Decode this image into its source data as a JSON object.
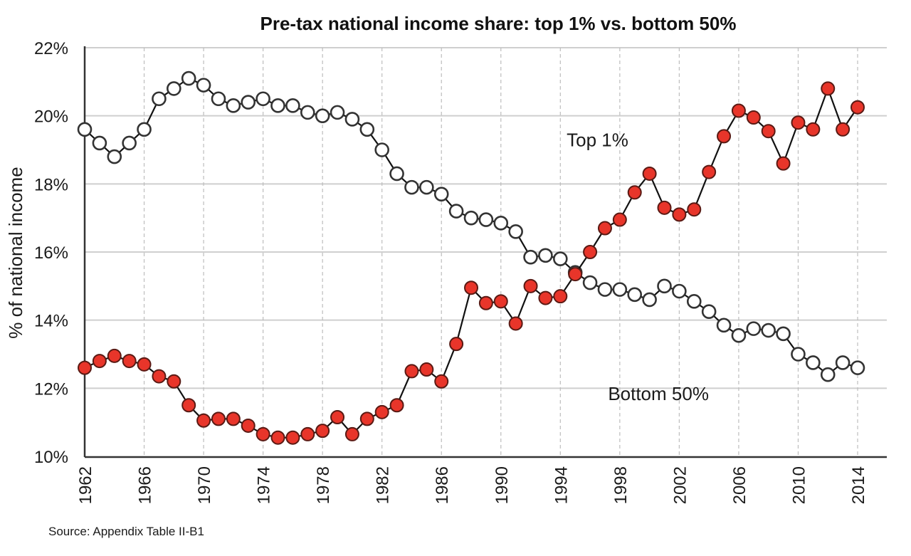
{
  "chart_data": {
    "type": "line",
    "title": "Pre-tax national income share: top 1% vs. bottom 50%",
    "xlabel": "",
    "ylabel": "% of national income",
    "ylim": [
      10,
      22
    ],
    "xlim": [
      1962,
      2014
    ],
    "yticks": [
      10,
      12,
      14,
      16,
      18,
      20,
      22
    ],
    "ytick_labels": [
      "10%",
      "12%",
      "14%",
      "16%",
      "18%",
      "20%",
      "22%"
    ],
    "xticks": [
      1962,
      1966,
      1970,
      1974,
      1978,
      1982,
      1986,
      1990,
      1994,
      1998,
      2002,
      2006,
      2010,
      2014
    ],
    "xtick_labels": [
      "1962",
      "1966",
      "1970",
      "1974",
      "1978",
      "1982",
      "1986",
      "1990",
      "1994",
      "1998",
      "2002",
      "2006",
      "2010",
      "2014"
    ],
    "grid": {
      "horizontal": true,
      "vertical": "dashed"
    },
    "x": [
      1962,
      1963,
      1964,
      1965,
      1966,
      1967,
      1968,
      1969,
      1970,
      1971,
      1972,
      1973,
      1974,
      1975,
      1976,
      1977,
      1978,
      1979,
      1980,
      1981,
      1982,
      1983,
      1984,
      1985,
      1986,
      1987,
      1988,
      1989,
      1990,
      1991,
      1992,
      1993,
      1994,
      1995,
      1996,
      1997,
      1998,
      1999,
      2000,
      2001,
      2002,
      2003,
      2004,
      2005,
      2006,
      2007,
      2008,
      2009,
      2010,
      2011,
      2012,
      2013,
      2014
    ],
    "series": [
      {
        "name": "Top 1%",
        "marker": "filled-circle",
        "color": "#e8352a",
        "values": [
          12.6,
          12.8,
          12.95,
          12.8,
          12.7,
          12.35,
          12.2,
          11.5,
          11.05,
          11.1,
          11.1,
          10.9,
          10.65,
          10.55,
          10.55,
          10.65,
          10.75,
          11.15,
          10.65,
          11.1,
          11.3,
          11.5,
          12.5,
          12.55,
          12.2,
          13.3,
          14.95,
          14.5,
          14.55,
          13.9,
          15.0,
          14.65,
          14.7,
          15.35,
          16.0,
          16.7,
          16.95,
          17.75,
          18.3,
          17.3,
          17.1,
          17.25,
          18.35,
          19.4,
          20.15,
          19.95,
          19.55,
          18.6,
          19.8,
          19.6,
          20.8,
          19.6,
          20.25
        ]
      },
      {
        "name": "Bottom 50%",
        "marker": "open-circle",
        "color": "#ffffff",
        "values": [
          19.6,
          19.2,
          18.8,
          19.2,
          19.6,
          20.5,
          20.8,
          21.1,
          20.9,
          20.5,
          20.3,
          20.4,
          20.5,
          20.3,
          20.3,
          20.1,
          20.0,
          20.1,
          19.9,
          19.6,
          19.0,
          18.3,
          17.9,
          17.9,
          17.7,
          17.2,
          17.0,
          16.95,
          16.85,
          16.6,
          15.85,
          15.9,
          15.8,
          15.4,
          15.1,
          14.9,
          14.9,
          14.75,
          14.6,
          15.0,
          14.85,
          14.55,
          14.25,
          13.85,
          13.55,
          13.75,
          13.7,
          13.6,
          13.0,
          12.75,
          12.4,
          12.75,
          12.6
        ]
      }
    ],
    "annotations": [
      {
        "text": "Top 1%",
        "x": 1996.5,
        "y": 19.1
      },
      {
        "text": "Bottom 50%",
        "x": 2000.6,
        "y": 11.65
      }
    ],
    "source": "Source: Appendix Table II-B1"
  }
}
